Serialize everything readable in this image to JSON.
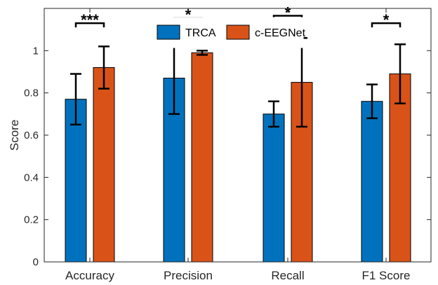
{
  "chart_data": {
    "type": "bar",
    "title": "",
    "xlabel": "",
    "ylabel": "Score",
    "ylim": [
      0,
      1.2
    ],
    "yticks": [
      0,
      0.2,
      0.4,
      0.6,
      0.8,
      1
    ],
    "ytick_labels": [
      "0",
      "0.2",
      "0.4",
      "0.6",
      "0.8",
      "1"
    ],
    "categories": [
      "Accuracy",
      "Precision",
      "Recall",
      "F1 Score"
    ],
    "series": [
      {
        "name": "TRCA",
        "color": "#0072BD",
        "values": [
          0.77,
          0.87,
          0.7,
          0.76
        ],
        "err_low": [
          0.65,
          0.7,
          0.64,
          0.68
        ],
        "err_high": [
          0.89,
          1.04,
          0.76,
          0.84
        ]
      },
      {
        "name": "c-EEGNet",
        "color": "#D95319",
        "values": [
          0.92,
          0.99,
          0.85,
          0.89
        ],
        "err_low": [
          0.82,
          0.98,
          0.64,
          0.75
        ],
        "err_high": [
          1.02,
          1.0,
          1.06,
          1.03
        ]
      }
    ],
    "significance": [
      {
        "category": "Accuracy",
        "label": "***",
        "level": 1.13
      },
      {
        "category": "Precision",
        "label": "*",
        "level": 1.155
      },
      {
        "category": "Recall",
        "label": "*",
        "level": 1.165
      },
      {
        "category": "F1 Score",
        "label": "*",
        "level": 1.13
      }
    ],
    "legend_position": "top-center",
    "grid": false
  }
}
